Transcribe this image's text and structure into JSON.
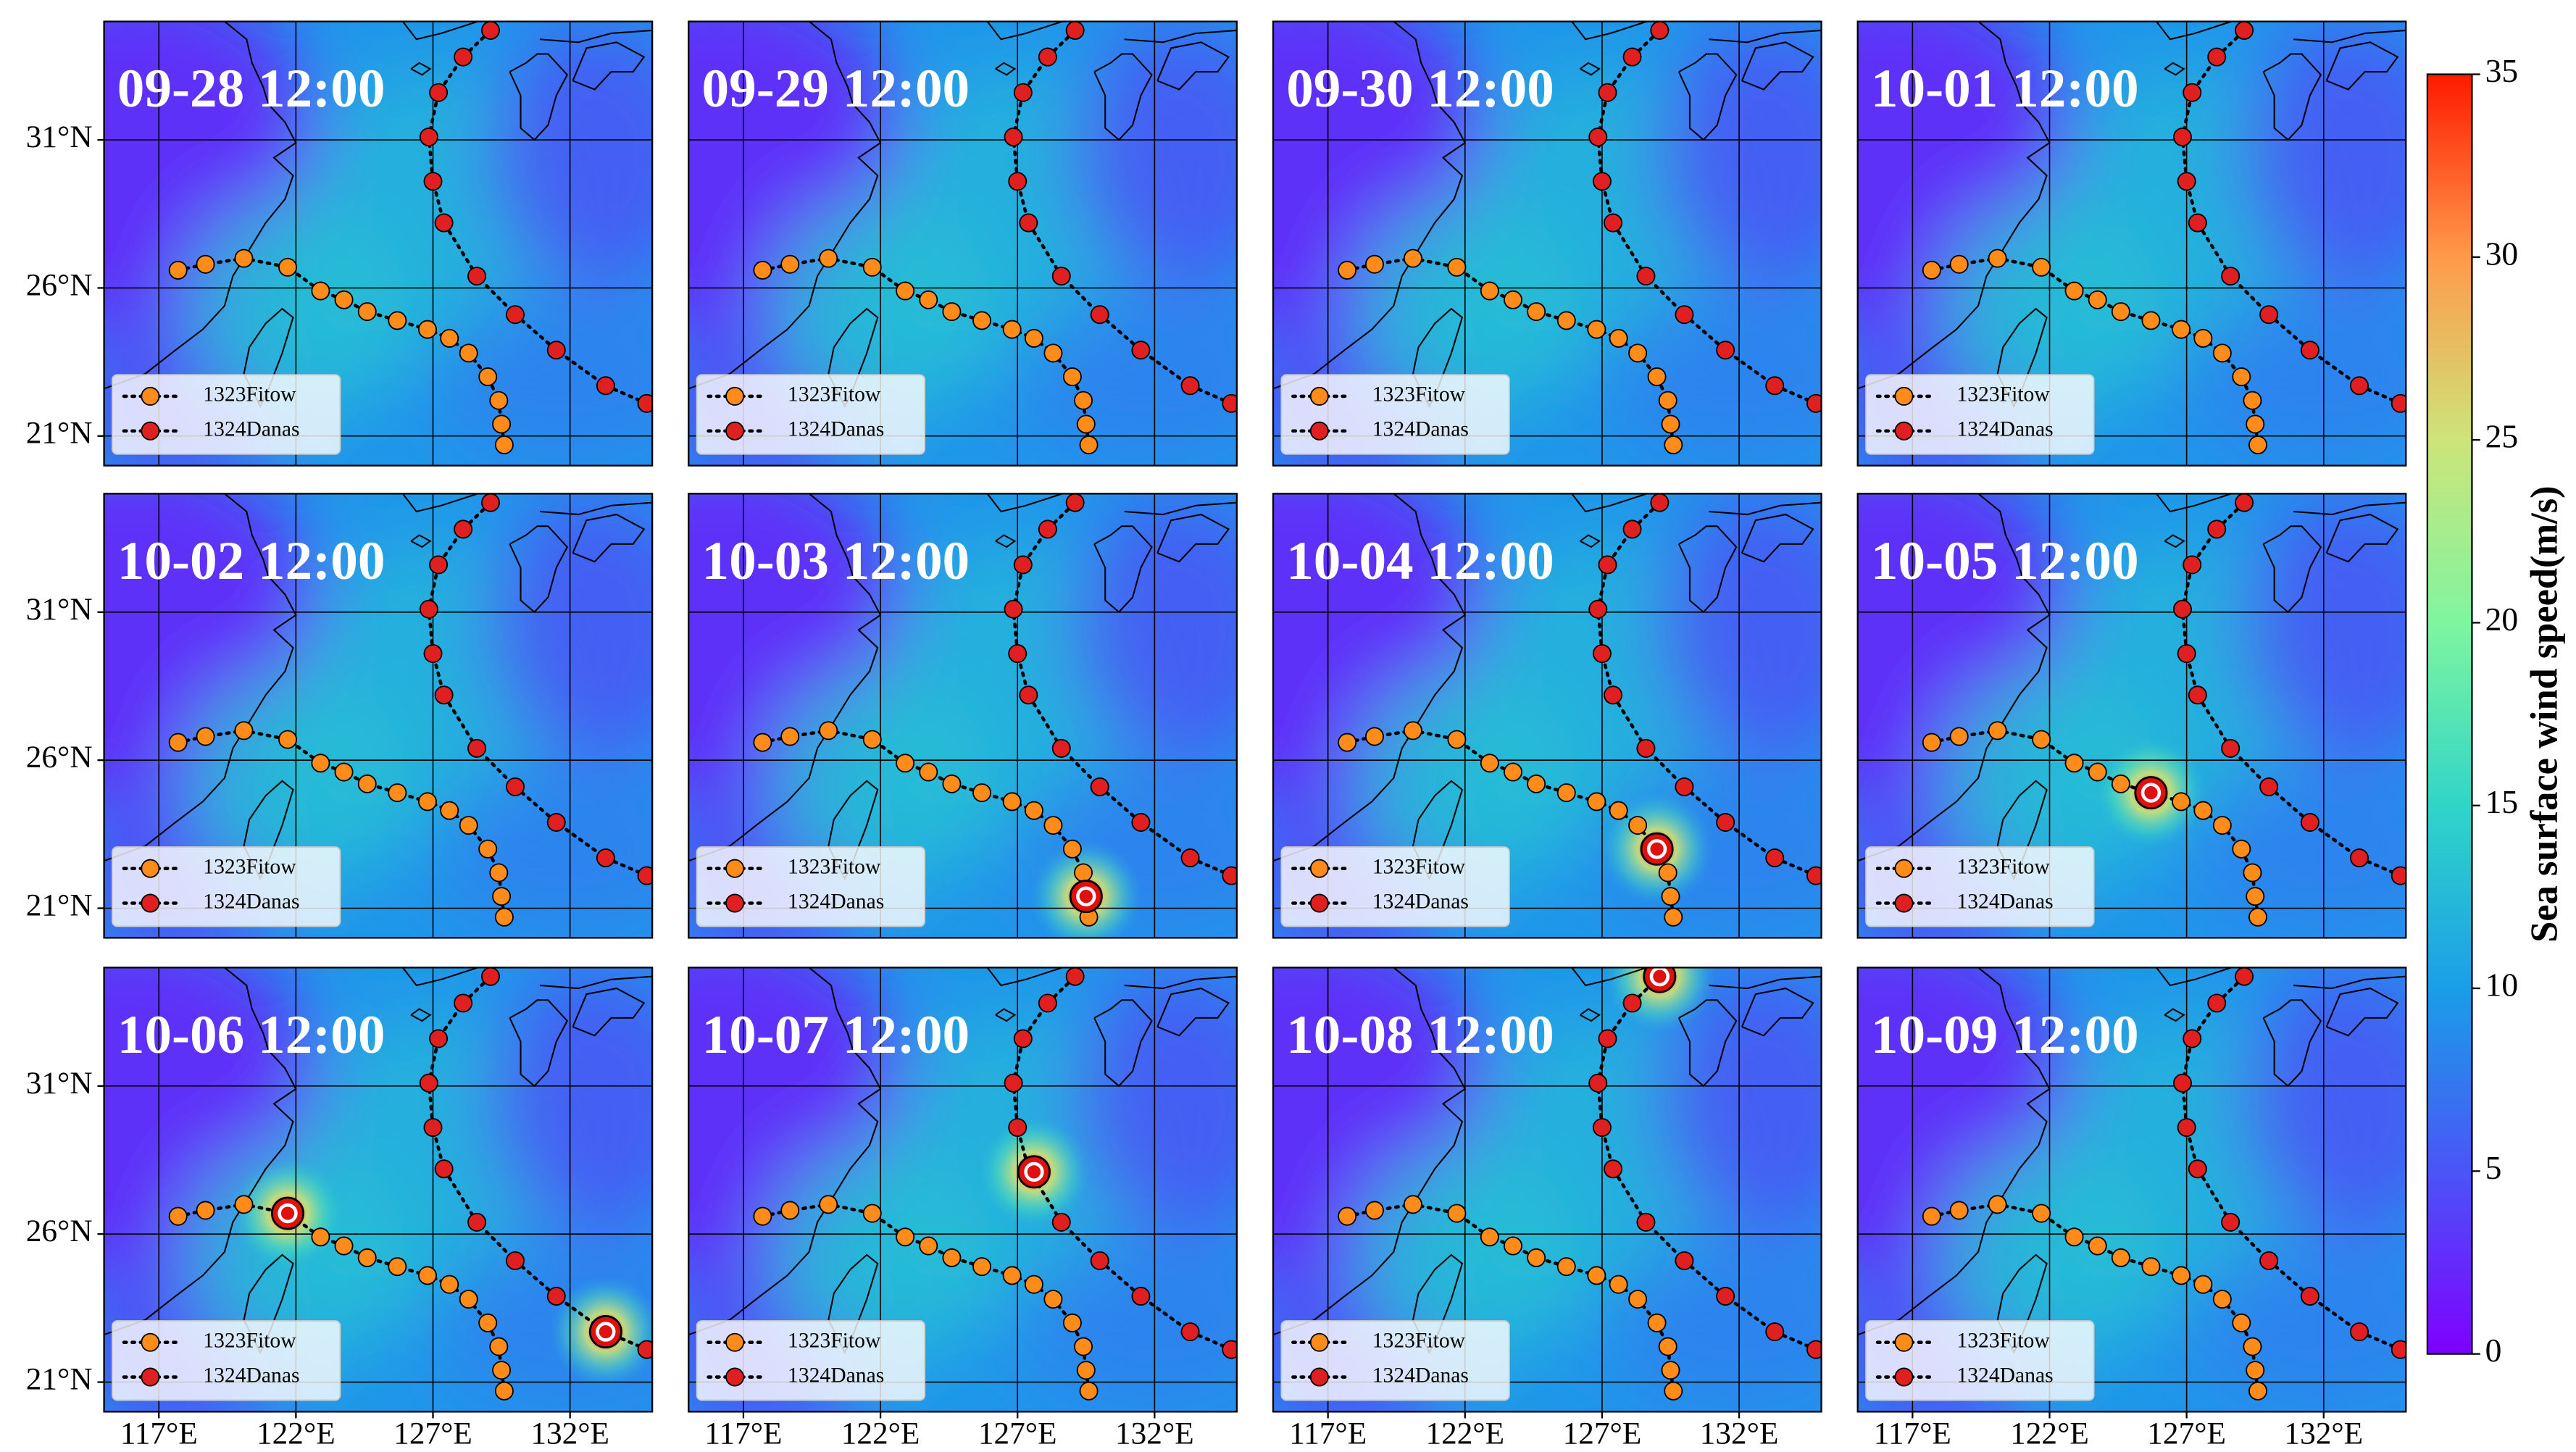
{
  "chart_data": {
    "type": "map-panels",
    "xlim": [
      115,
      135
    ],
    "ylim": [
      20,
      35
    ],
    "xticks": [
      {
        "value": 117,
        "label": "117°E"
      },
      {
        "value": 122,
        "label": "122°E"
      },
      {
        "value": 127,
        "label": "127°E"
      },
      {
        "value": 132,
        "label": "132°E"
      }
    ],
    "yticks": [
      {
        "value": 21,
        "label": "21°N"
      },
      {
        "value": 26,
        "label": "26°N"
      },
      {
        "value": 31,
        "label": "31°N"
      }
    ],
    "panels": [
      {
        "title": "09-28 12:00"
      },
      {
        "title": "09-29 12:00"
      },
      {
        "title": "09-30 12:00"
      },
      {
        "title": "10-01 12:00"
      },
      {
        "title": "10-02 12:00"
      },
      {
        "title": "10-03 12:00",
        "storms": [
          {
            "lon": 129.5,
            "lat": 21.4
          }
        ]
      },
      {
        "title": "10-04 12:00",
        "storms": [
          {
            "lon": 129.0,
            "lat": 23.0
          }
        ]
      },
      {
        "title": "10-05 12:00",
        "storms": [
          {
            "lon": 125.7,
            "lat": 24.9
          }
        ]
      },
      {
        "title": "10-06 12:00",
        "storms": [
          {
            "lon": 121.7,
            "lat": 26.7
          },
          {
            "lon": 133.3,
            "lat": 22.7
          }
        ]
      },
      {
        "title": "10-07 12:00",
        "storms": [
          {
            "lon": 127.6,
            "lat": 28.1
          }
        ]
      },
      {
        "title": "10-08 12:00",
        "storms": [
          {
            "lon": 129.1,
            "lat": 34.7
          }
        ]
      },
      {
        "title": "10-09 12:00"
      }
    ],
    "series": [
      {
        "name": "1323Fitow",
        "color": "#ff8c1a",
        "lon": [
          129.6,
          129.5,
          129.4,
          129.0,
          128.3,
          127.6,
          126.8,
          125.7,
          124.6,
          123.75,
          122.9,
          121.7,
          120.1,
          118.7,
          117.7
        ],
        "lat": [
          20.7,
          21.4,
          22.2,
          23.0,
          23.8,
          24.3,
          24.6,
          24.9,
          25.2,
          25.6,
          25.9,
          26.7,
          27.0,
          26.8,
          26.6
        ]
      },
      {
        "name": "1324Danas",
        "color": "#e02020",
        "lon": [
          134.8,
          133.3,
          131.5,
          130.0,
          128.6,
          127.4,
          127.0,
          126.85,
          127.2,
          128.1,
          129.1
        ],
        "lat": [
          22.1,
          22.7,
          23.9,
          25.1,
          26.4,
          28.2,
          29.6,
          31.1,
          32.6,
          33.8,
          34.7
        ]
      }
    ],
    "colorbar": {
      "label": "Sea surface wind speed(m/s)",
      "lim": [
        0,
        35
      ],
      "ticks": [
        0,
        5,
        10,
        15,
        20,
        25,
        30,
        35
      ],
      "colors": [
        "#7f00ff",
        "#4a55f6",
        "#1a9ee8",
        "#30d5c8",
        "#7ff5a0",
        "#cde47a",
        "#ff9a4a",
        "#ff1a00"
      ]
    }
  }
}
